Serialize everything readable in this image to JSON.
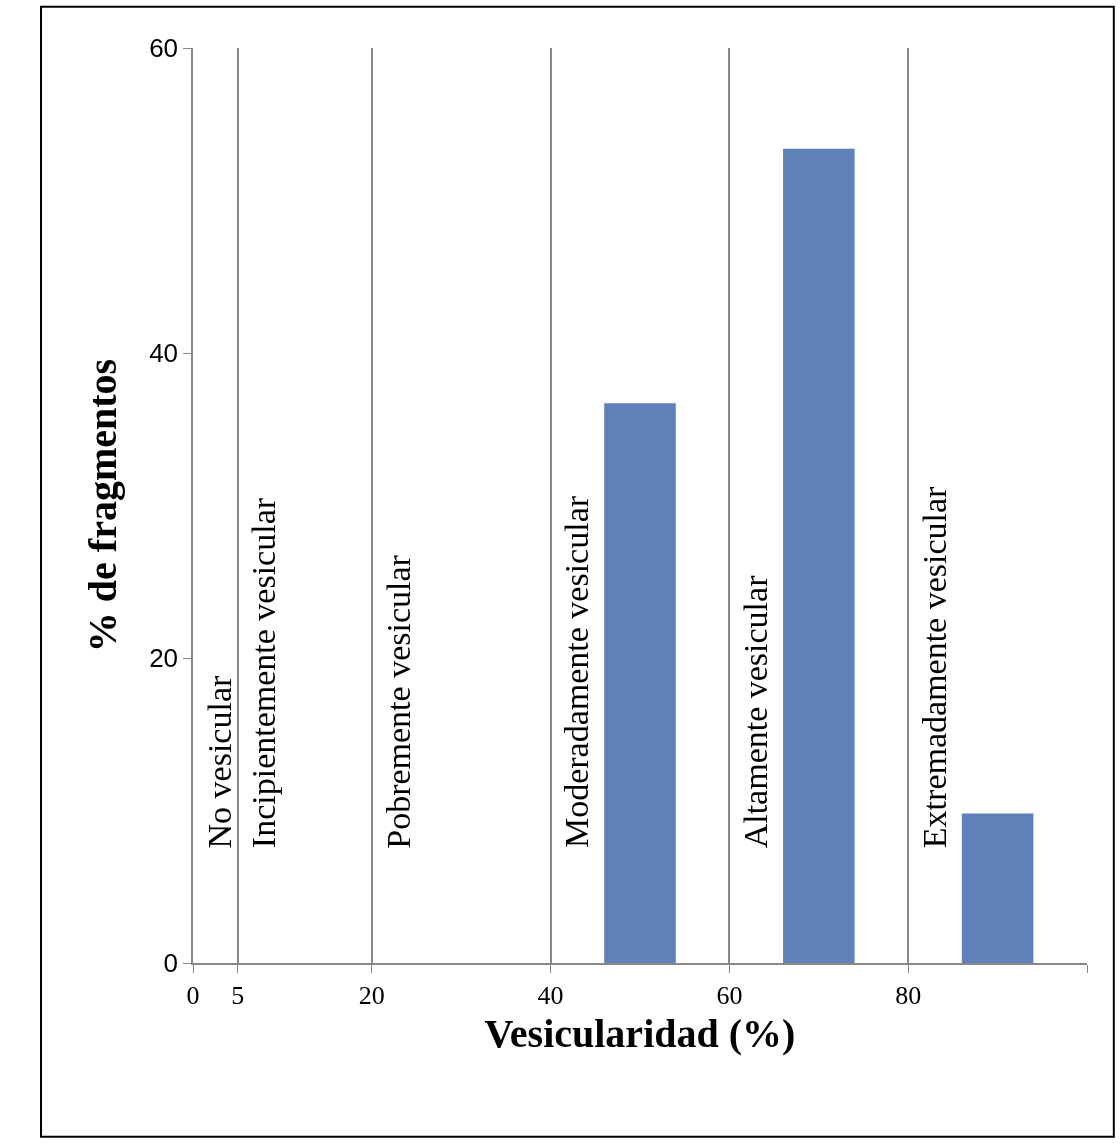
{
  "chart_data": {
    "type": "bar",
    "xlabel": "Vesicularidad (%)",
    "ylabel": "% de fragmentos",
    "x": [
      50,
      70,
      90
    ],
    "values": [
      36.7,
      53.4,
      9.8
    ],
    "color": "#6080ba",
    "xlim": [
      0,
      100
    ],
    "xticks": [
      0,
      5,
      20,
      40,
      60,
      80,
      {
        "value": 100,
        "label": null
      }
    ],
    "ylim": [
      0,
      60
    ],
    "yticks": [
      0,
      20,
      40,
      60
    ],
    "grid": "x",
    "annotations": [
      "No vesicular",
      "Incipientemente vesicular",
      "Pobremente vesicular",
      "Moderadamente vesicular",
      "Altamente vesicular",
      "Extremadamente vesicular"
    ]
  }
}
